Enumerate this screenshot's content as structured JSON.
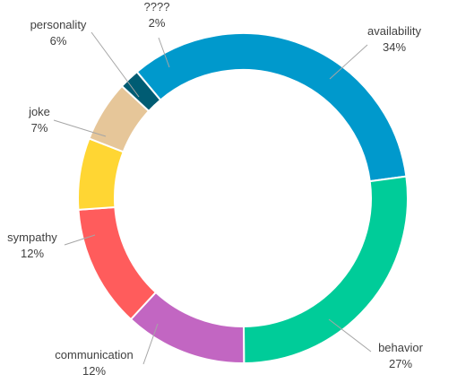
{
  "chart_data": {
    "type": "pie",
    "subtype": "donut",
    "legend": "none",
    "slices": [
      {
        "label": "availability",
        "value": 34,
        "value_label": "34%",
        "color": "#0099CC"
      },
      {
        "label": "behavior",
        "value": 27,
        "value_label": "27%",
        "color": "#00CC99"
      },
      {
        "label": "communication",
        "value": 12,
        "value_label": "12%",
        "color": "#C266C2"
      },
      {
        "label": "sympathy",
        "value": 12,
        "value_label": "12%",
        "color": "#FF5C5C"
      },
      {
        "label": "joke",
        "value": 7,
        "value_label": "7%",
        "color": "#FFD633"
      },
      {
        "label": "personality",
        "value": 6,
        "value_label": "6%",
        "color": "#E6C699"
      },
      {
        "label": "????",
        "value": 2,
        "value_label": "2%",
        "color": "#005C73"
      }
    ]
  }
}
